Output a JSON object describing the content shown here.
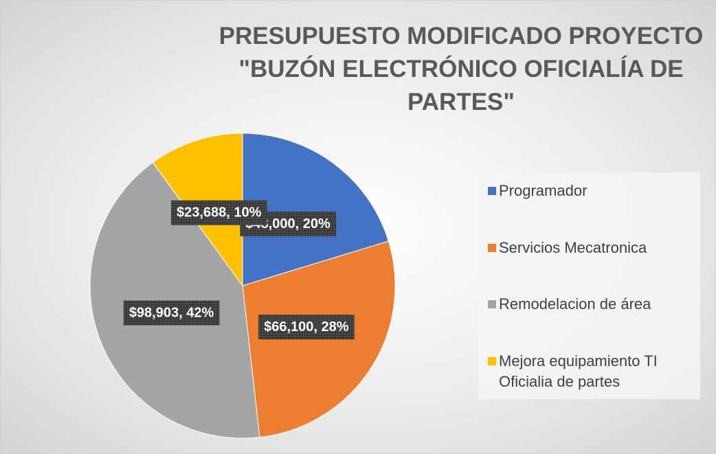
{
  "chart_data": {
    "type": "pie",
    "title": "PRESUPUESTO MODIFICADO PROYECTO \"BUZÓN ELECTRÓNICO OFICIALÍA DE PARTES\"",
    "categories": [
      "Programador",
      "Servicios Mecatronica",
      "Remodelacion de área",
      "Mejora equipamiento TI Oficialia de partes"
    ],
    "values": [
      48000,
      66100,
      98903,
      23688
    ],
    "value_labels": [
      "$48,000, 20%",
      "$66,100, 28%",
      "$98,903, 42%",
      "$23,688, 10%"
    ],
    "colors": [
      "#4472c4",
      "#ed7d31",
      "#a5a5a5",
      "#ffc000"
    ],
    "legend": "right"
  }
}
